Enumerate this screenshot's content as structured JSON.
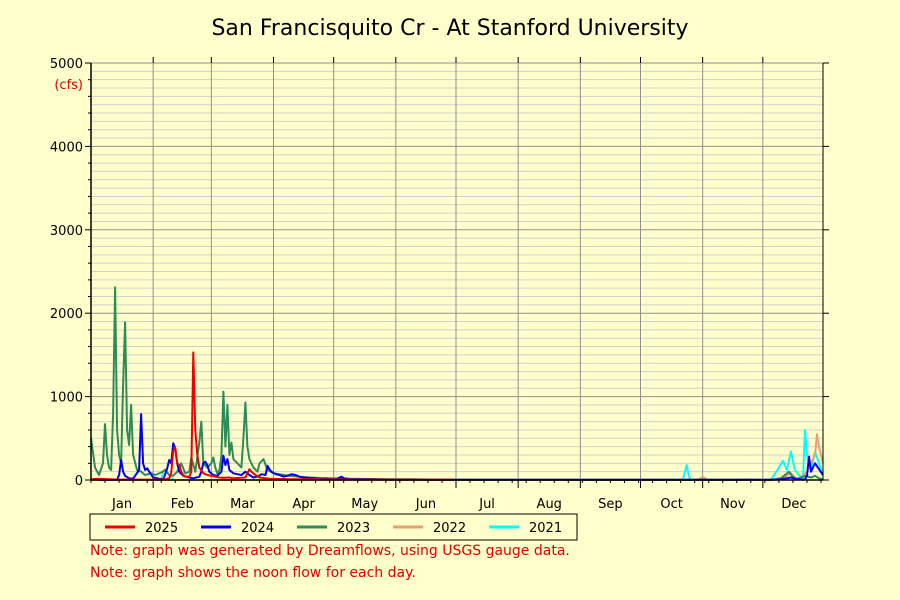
{
  "chart_data": {
    "type": "line",
    "title": "San Francisquito Cr - At Stanford University",
    "ylabel": "(cfs)",
    "ylim": [
      0,
      5000
    ],
    "y_ticks": [
      0,
      1000,
      2000,
      3000,
      4000,
      5000
    ],
    "y_tick_labels": [
      "0",
      "1000",
      "2000",
      "3000",
      "4000",
      "5000"
    ],
    "x_range_days": [
      1,
      366
    ],
    "month_labels": [
      "Jan",
      "Feb",
      "Mar",
      "Apr",
      "May",
      "Jun",
      "Jul",
      "Aug",
      "Sep",
      "Oct",
      "Nov",
      "Dec"
    ],
    "grid": true,
    "legend_position": "bottom",
    "series": [
      {
        "name": "2021",
        "color": "#00ffff",
        "points": [
          [
            1,
            0
          ],
          [
            17,
            0
          ],
          [
            20,
            5
          ],
          [
            22,
            2
          ],
          [
            24,
            0
          ],
          [
            36,
            0
          ],
          [
            37,
            100
          ],
          [
            38,
            130
          ],
          [
            40,
            60
          ],
          [
            42,
            0
          ],
          [
            150,
            0
          ],
          [
            296,
            0
          ],
          [
            297,
            80
          ],
          [
            298,
            180
          ],
          [
            299,
            60
          ],
          [
            300,
            0
          ],
          [
            340,
            0
          ],
          [
            344,
            150
          ],
          [
            346,
            230
          ],
          [
            348,
            120
          ],
          [
            350,
            340
          ],
          [
            352,
            120
          ],
          [
            354,
            60
          ],
          [
            356,
            0
          ],
          [
            357,
            600
          ],
          [
            358,
            300
          ],
          [
            360,
            120
          ],
          [
            362,
            340
          ],
          [
            364,
            200
          ],
          [
            366,
            60
          ]
        ]
      },
      {
        "name": "2022",
        "color": "#e8a070",
        "points": [
          [
            1,
            0
          ],
          [
            30,
            0
          ],
          [
            80,
            0
          ],
          [
            120,
            0
          ],
          [
            200,
            0
          ],
          [
            274,
            0
          ],
          [
            300,
            0
          ],
          [
            304,
            8
          ],
          [
            306,
            35
          ],
          [
            308,
            10
          ],
          [
            310,
            0
          ],
          [
            340,
            0
          ],
          [
            345,
            20
          ],
          [
            348,
            50
          ],
          [
            350,
            80
          ],
          [
            352,
            30
          ],
          [
            354,
            10
          ],
          [
            358,
            100
          ],
          [
            362,
            300
          ],
          [
            363,
            550
          ],
          [
            364,
            400
          ],
          [
            366,
            200
          ]
        ]
      },
      {
        "name": "2023",
        "color": "#2e8b57",
        "points": [
          [
            1,
            500
          ],
          [
            3,
            150
          ],
          [
            5,
            60
          ],
          [
            7,
            200
          ],
          [
            8,
            670
          ],
          [
            9,
            300
          ],
          [
            10,
            150
          ],
          [
            11,
            120
          ],
          [
            12,
            800
          ],
          [
            13,
            2310
          ],
          [
            14,
            600
          ],
          [
            15,
            300
          ],
          [
            16,
            200
          ],
          [
            17,
            1140
          ],
          [
            18,
            1890
          ],
          [
            19,
            600
          ],
          [
            20,
            420
          ],
          [
            21,
            900
          ],
          [
            22,
            300
          ],
          [
            24,
            120
          ],
          [
            26,
            100
          ],
          [
            28,
            60
          ],
          [
            31,
            80
          ],
          [
            33,
            60
          ],
          [
            36,
            90
          ],
          [
            38,
            120
          ],
          [
            40,
            60
          ],
          [
            42,
            50
          ],
          [
            44,
            100
          ],
          [
            46,
            200
          ],
          [
            48,
            80
          ],
          [
            50,
            100
          ],
          [
            51,
            270
          ],
          [
            53,
            100
          ],
          [
            55,
            450
          ],
          [
            56,
            700
          ],
          [
            57,
            200
          ],
          [
            59,
            150
          ],
          [
            61,
            200
          ],
          [
            62,
            270
          ],
          [
            63,
            150
          ],
          [
            64,
            80
          ],
          [
            65,
            120
          ],
          [
            66,
            290
          ],
          [
            67,
            1060
          ],
          [
            68,
            400
          ],
          [
            69,
            900
          ],
          [
            70,
            300
          ],
          [
            71,
            450
          ],
          [
            72,
            250
          ],
          [
            74,
            200
          ],
          [
            76,
            150
          ],
          [
            77,
            500
          ],
          [
            78,
            930
          ],
          [
            79,
            400
          ],
          [
            80,
            250
          ],
          [
            82,
            150
          ],
          [
            84,
            100
          ],
          [
            85,
            200
          ],
          [
            87,
            250
          ],
          [
            89,
            120
          ],
          [
            92,
            80
          ],
          [
            95,
            70
          ],
          [
            100,
            50
          ],
          [
            105,
            40
          ],
          [
            110,
            30
          ],
          [
            115,
            25
          ],
          [
            120,
            20
          ],
          [
            130,
            15
          ],
          [
            140,
            12
          ],
          [
            150,
            10
          ],
          [
            160,
            8
          ],
          [
            170,
            6
          ],
          [
            180,
            5
          ],
          [
            200,
            3
          ],
          [
            250,
            2
          ],
          [
            300,
            2
          ],
          [
            340,
            3
          ],
          [
            345,
            20
          ],
          [
            347,
            60
          ],
          [
            349,
            100
          ],
          [
            351,
            40
          ],
          [
            353,
            10
          ],
          [
            357,
            50
          ],
          [
            360,
            30
          ],
          [
            362,
            50
          ],
          [
            364,
            20
          ],
          [
            366,
            10
          ]
        ]
      },
      {
        "name": "2024",
        "color": "#0000ee",
        "points": [
          [
            1,
            5
          ],
          [
            3,
            10
          ],
          [
            5,
            5
          ],
          [
            8,
            0
          ],
          [
            14,
            5
          ],
          [
            15,
            60
          ],
          [
            16,
            240
          ],
          [
            17,
            100
          ],
          [
            18,
            50
          ],
          [
            20,
            20
          ],
          [
            22,
            15
          ],
          [
            25,
            120
          ],
          [
            26,
            790
          ],
          [
            27,
            200
          ],
          [
            28,
            120
          ],
          [
            29,
            140
          ],
          [
            30,
            100
          ],
          [
            32,
            30
          ],
          [
            35,
            15
          ],
          [
            37,
            10
          ],
          [
            38,
            70
          ],
          [
            39,
            140
          ],
          [
            40,
            240
          ],
          [
            41,
            200
          ],
          [
            42,
            440
          ],
          [
            43,
            380
          ],
          [
            44,
            200
          ],
          [
            45,
            100
          ],
          [
            47,
            50
          ],
          [
            50,
            30
          ],
          [
            52,
            20
          ],
          [
            55,
            40
          ],
          [
            56,
            100
          ],
          [
            57,
            200
          ],
          [
            58,
            220
          ],
          [
            59,
            180
          ],
          [
            60,
            100
          ],
          [
            62,
            60
          ],
          [
            64,
            50
          ],
          [
            66,
            100
          ],
          [
            67,
            290
          ],
          [
            68,
            180
          ],
          [
            69,
            250
          ],
          [
            70,
            120
          ],
          [
            72,
            80
          ],
          [
            74,
            70
          ],
          [
            76,
            60
          ],
          [
            78,
            100
          ],
          [
            80,
            60
          ],
          [
            82,
            30
          ],
          [
            84,
            40
          ],
          [
            86,
            70
          ],
          [
            88,
            60
          ],
          [
            89,
            170
          ],
          [
            90,
            130
          ],
          [
            91,
            100
          ],
          [
            93,
            70
          ],
          [
            95,
            60
          ],
          [
            97,
            40
          ],
          [
            99,
            50
          ],
          [
            101,
            70
          ],
          [
            103,
            60
          ],
          [
            105,
            40
          ],
          [
            107,
            30
          ],
          [
            110,
            25
          ],
          [
            112,
            20
          ],
          [
            114,
            15
          ],
          [
            116,
            10
          ],
          [
            118,
            15
          ],
          [
            120,
            10
          ],
          [
            123,
            8
          ],
          [
            126,
            40
          ],
          [
            127,
            20
          ],
          [
            130,
            10
          ],
          [
            140,
            8
          ],
          [
            150,
            5
          ],
          [
            160,
            5
          ],
          [
            170,
            4
          ],
          [
            180,
            3
          ],
          [
            200,
            3
          ],
          [
            220,
            2
          ],
          [
            240,
            2
          ],
          [
            260,
            2
          ],
          [
            280,
            2
          ],
          [
            300,
            2
          ],
          [
            320,
            2
          ],
          [
            330,
            5
          ],
          [
            332,
            2
          ],
          [
            340,
            3
          ],
          [
            343,
            5
          ],
          [
            345,
            10
          ],
          [
            348,
            20
          ],
          [
            350,
            30
          ],
          [
            352,
            15
          ],
          [
            354,
            10
          ],
          [
            356,
            5
          ],
          [
            357,
            10
          ],
          [
            358,
            50
          ],
          [
            359,
            280
          ],
          [
            360,
            100
          ],
          [
            362,
            200
          ],
          [
            364,
            130
          ],
          [
            366,
            60
          ]
        ]
      },
      {
        "name": "2025",
        "color": "#ee0000",
        "points": [
          [
            1,
            10
          ],
          [
            5,
            15
          ],
          [
            10,
            10
          ],
          [
            15,
            5
          ],
          [
            20,
            5
          ],
          [
            25,
            5
          ],
          [
            30,
            5
          ],
          [
            35,
            5
          ],
          [
            38,
            10
          ],
          [
            40,
            20
          ],
          [
            41,
            80
          ],
          [
            42,
            350
          ],
          [
            43,
            390
          ],
          [
            44,
            200
          ],
          [
            45,
            180
          ],
          [
            46,
            100
          ],
          [
            47,
            60
          ],
          [
            48,
            40
          ],
          [
            50,
            40
          ],
          [
            51,
            100
          ],
          [
            52,
            1530
          ],
          [
            53,
            600
          ],
          [
            54,
            300
          ],
          [
            55,
            150
          ],
          [
            57,
            80
          ],
          [
            59,
            60
          ],
          [
            61,
            50
          ],
          [
            63,
            40
          ],
          [
            65,
            30
          ],
          [
            67,
            25
          ],
          [
            70,
            30
          ],
          [
            72,
            20
          ],
          [
            75,
            25
          ],
          [
            78,
            30
          ],
          [
            79,
            80
          ],
          [
            80,
            130
          ],
          [
            81,
            100
          ],
          [
            83,
            60
          ],
          [
            85,
            30
          ],
          [
            88,
            20
          ],
          [
            90,
            15
          ],
          [
            95,
            12
          ],
          [
            100,
            10
          ],
          [
            110,
            8
          ],
          [
            120,
            6
          ],
          [
            130,
            5
          ],
          [
            140,
            5
          ],
          [
            150,
            4
          ],
          [
            160,
            3
          ],
          [
            170,
            3
          ],
          [
            180,
            3
          ],
          [
            182,
            3
          ]
        ]
      }
    ]
  },
  "notes": [
    "Note: graph was generated by Dreamflows, using USGS gauge data.",
    "Note: graph shows the noon flow for each day."
  ]
}
